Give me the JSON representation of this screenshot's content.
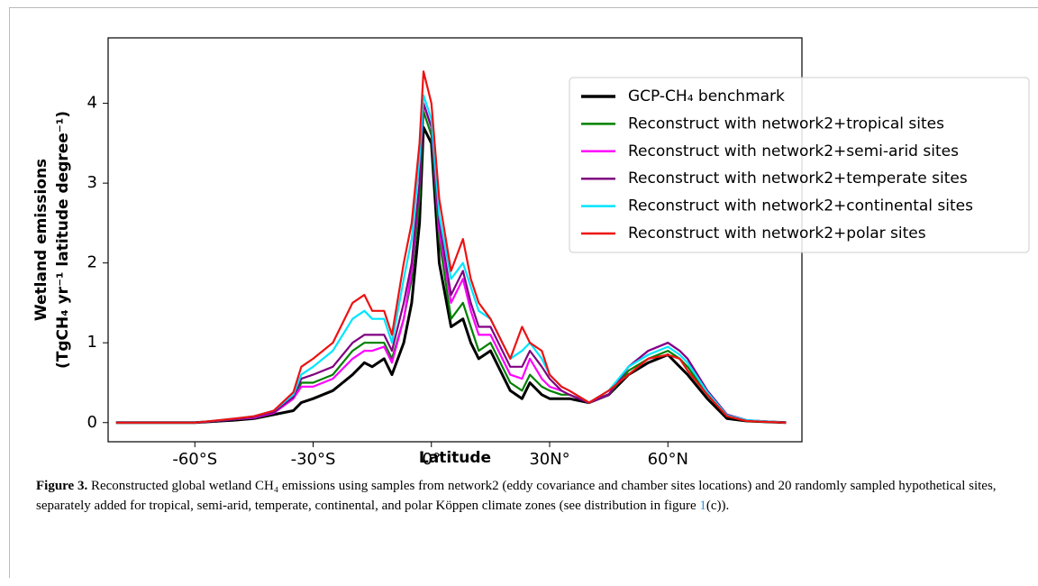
{
  "chart_data": {
    "type": "line",
    "xlabel": "Latitude",
    "ylabel": [
      "Wetland emissions",
      "(TgCH₄ yr⁻¹ latitude degree⁻¹)"
    ],
    "x": [
      -80,
      -60,
      -50,
      -45,
      -40,
      -35,
      -33,
      -30,
      -25,
      -20,
      -17,
      -15,
      -12,
      -10,
      -7,
      -5,
      -3,
      -2,
      0,
      2,
      5,
      8,
      10,
      12,
      15,
      20,
      23,
      25,
      28,
      30,
      33,
      35,
      40,
      45,
      50,
      55,
      60,
      63,
      65,
      70,
      75,
      80,
      90
    ],
    "xlim": [
      -82,
      94
    ],
    "xticks": [
      {
        "value": -60,
        "label": "-60°S"
      },
      {
        "value": -30,
        "label": "-30°S"
      },
      {
        "value": 0,
        "label": "0°"
      },
      {
        "value": 30,
        "label": "30N°"
      },
      {
        "value": 60,
        "label": "60°N"
      }
    ],
    "ylim": [
      -0.24,
      4.82
    ],
    "yticks": [
      0,
      1,
      2,
      3,
      4
    ],
    "legend": "upper right",
    "series": [
      {
        "name": "GCP-CH₄ benchmark",
        "color": "#000000",
        "values": [
          0,
          0,
          0.03,
          0.05,
          0.1,
          0.15,
          0.25,
          0.3,
          0.4,
          0.6,
          0.75,
          0.7,
          0.8,
          0.6,
          1.0,
          1.5,
          2.5,
          3.7,
          3.5,
          2.0,
          1.2,
          1.3,
          1.0,
          0.8,
          0.9,
          0.4,
          0.3,
          0.5,
          0.35,
          0.3,
          0.3,
          0.3,
          0.25,
          0.35,
          0.6,
          0.75,
          0.85,
          0.7,
          0.6,
          0.3,
          0.05,
          0.02,
          0
        ]
      },
      {
        "name": "Reconstruct with network2+tropical sites",
        "color": "#008000",
        "values": [
          0,
          0,
          0.04,
          0.06,
          0.12,
          0.3,
          0.5,
          0.5,
          0.6,
          0.9,
          1.0,
          1.0,
          1.0,
          0.8,
          1.3,
          1.8,
          2.8,
          3.9,
          3.6,
          2.3,
          1.3,
          1.5,
          1.2,
          0.9,
          1.0,
          0.5,
          0.4,
          0.6,
          0.45,
          0.4,
          0.35,
          0.35,
          0.25,
          0.35,
          0.65,
          0.8,
          0.9,
          0.8,
          0.7,
          0.35,
          0.08,
          0.02,
          0
        ]
      },
      {
        "name": "Reconstruct with network2+semi-arid sites",
        "color": "#ff00ff",
        "values": [
          0,
          0,
          0.04,
          0.06,
          0.12,
          0.3,
          0.45,
          0.45,
          0.55,
          0.8,
          0.9,
          0.9,
          0.95,
          0.75,
          1.3,
          1.9,
          3.0,
          4.0,
          3.7,
          2.4,
          1.5,
          1.8,
          1.4,
          1.1,
          1.1,
          0.6,
          0.55,
          0.8,
          0.55,
          0.45,
          0.4,
          0.35,
          0.25,
          0.35,
          0.7,
          0.9,
          1.0,
          0.9,
          0.8,
          0.4,
          0.1,
          0.03,
          0
        ]
      },
      {
        "name": "Reconstruct with network2+temperate sites",
        "color": "#800080",
        "values": [
          0,
          0,
          0.04,
          0.07,
          0.13,
          0.32,
          0.55,
          0.6,
          0.7,
          1.0,
          1.1,
          1.1,
          1.1,
          0.9,
          1.5,
          2.0,
          3.0,
          4.0,
          3.7,
          2.5,
          1.6,
          1.9,
          1.5,
          1.2,
          1.2,
          0.7,
          0.7,
          0.9,
          0.7,
          0.55,
          0.4,
          0.35,
          0.25,
          0.35,
          0.7,
          0.9,
          1.0,
          0.9,
          0.8,
          0.4,
          0.1,
          0.03,
          0
        ]
      },
      {
        "name": "Reconstruct with network2+continental sites",
        "color": "#00e5ff",
        "values": [
          0,
          0,
          0.05,
          0.08,
          0.15,
          0.35,
          0.6,
          0.7,
          0.9,
          1.3,
          1.4,
          1.3,
          1.3,
          1.0,
          1.8,
          2.3,
          3.3,
          4.1,
          3.8,
          2.6,
          1.8,
          2.0,
          1.7,
          1.4,
          1.3,
          0.8,
          0.9,
          1.0,
          0.8,
          0.6,
          0.45,
          0.4,
          0.25,
          0.4,
          0.7,
          0.85,
          0.95,
          0.85,
          0.75,
          0.38,
          0.09,
          0.03,
          0
        ]
      },
      {
        "name": "Reconstruct with network2+polar sites",
        "color": "#ee1111",
        "values": [
          0,
          0,
          0.05,
          0.08,
          0.15,
          0.38,
          0.7,
          0.8,
          1.0,
          1.5,
          1.6,
          1.4,
          1.4,
          1.1,
          2.0,
          2.5,
          3.5,
          4.4,
          4.0,
          2.8,
          1.9,
          2.3,
          1.8,
          1.5,
          1.3,
          0.8,
          1.2,
          1.0,
          0.9,
          0.6,
          0.45,
          0.4,
          0.25,
          0.4,
          0.6,
          0.8,
          0.85,
          0.8,
          0.65,
          0.35,
          0.08,
          0.02,
          0
        ]
      }
    ]
  },
  "caption": {
    "label": "Figure 3.",
    "text": " Reconstructed global wetland CH₄ emissions using samples from network2 (eddy covariance and chamber sites locations) and 20 randomly sampled hypothetical sites, separately added for tropical, semi-arid, temperate, continental, and polar Köppen climate zones (see distribution in figure ",
    "ref": "1",
    "tail": "(c))."
  }
}
